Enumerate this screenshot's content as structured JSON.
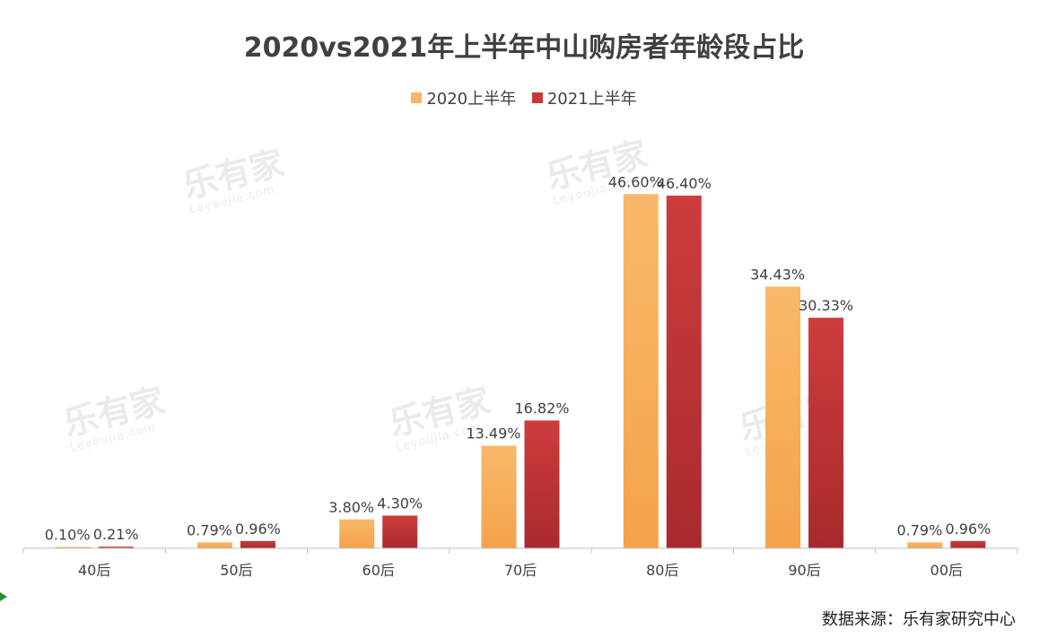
{
  "chart_data": {
    "type": "bar",
    "title": "2020vs2021年上半年中山购房者年龄段占比",
    "categories": [
      "40后",
      "50后",
      "60后",
      "70后",
      "80后",
      "90后",
      "00后"
    ],
    "series": [
      {
        "name": "2020上半年",
        "values": [
          0.1,
          0.79,
          3.8,
          13.49,
          46.6,
          34.43,
          0.79
        ],
        "labels": [
          "0.10%",
          "0.79%",
          "3.80%",
          "13.49%",
          "46.60%",
          "34.43%",
          "0.79%"
        ],
        "color": "#F8B564"
      },
      {
        "name": "2021上半年",
        "values": [
          0.21,
          0.96,
          4.3,
          16.82,
          46.4,
          30.33,
          0.96
        ],
        "labels": [
          "0.21%",
          "0.96%",
          "4.30%",
          "16.82%",
          "46.40%",
          "30.33%",
          "0.96%"
        ],
        "color": "#C8373A"
      }
    ],
    "ylim": [
      0,
      50
    ],
    "grid": false,
    "legend_position": "top-center"
  },
  "watermark": {
    "text": "乐有家",
    "sub": "Leyoujia.com"
  },
  "source_note": "数据来源：乐有家研究中心",
  "colors": {
    "bar_2020_dark": "#F4A24A",
    "bar_2021_dark": "#A82A2E",
    "axis": "#BFBFBF",
    "text": "#404040"
  }
}
